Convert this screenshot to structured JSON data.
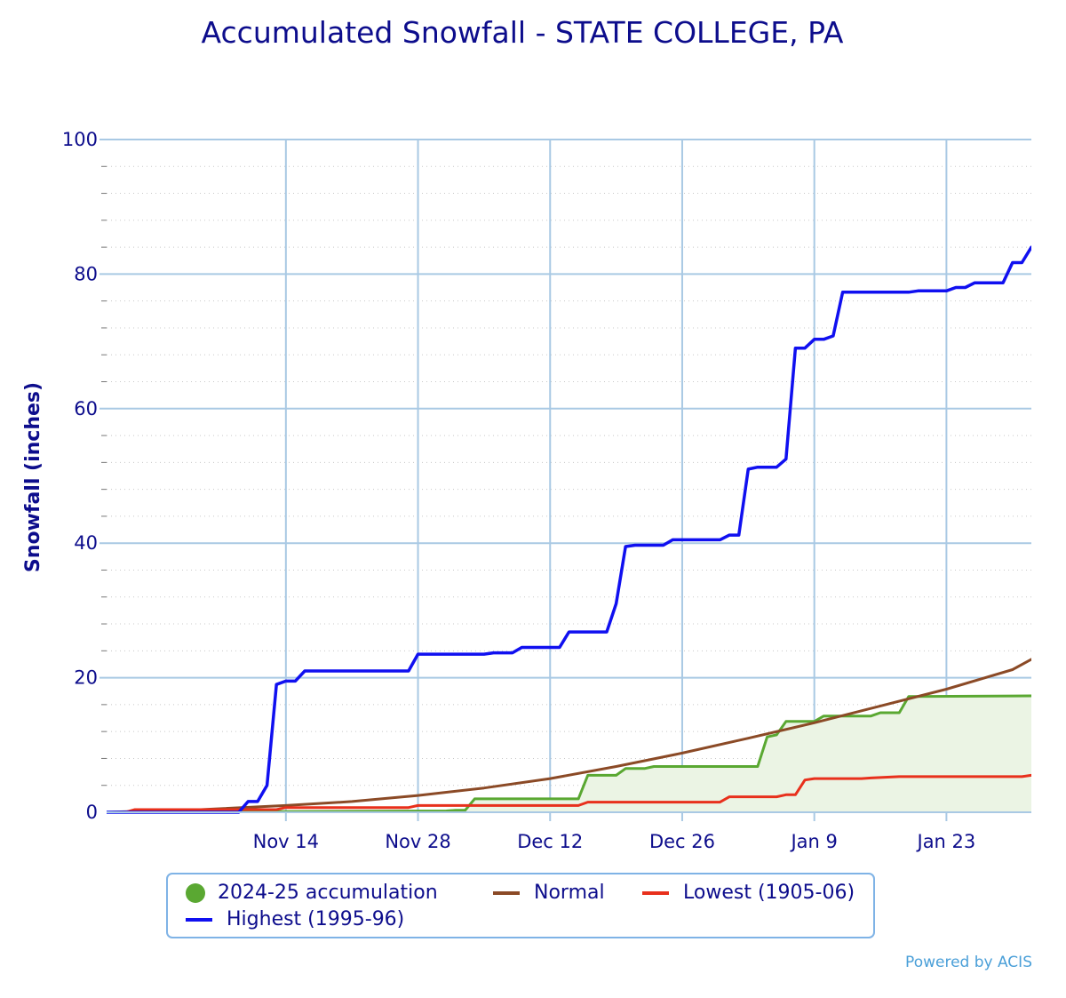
{
  "chart_data": {
    "type": "line",
    "title": "Accumulated Snowfall - STATE COLLEGE, PA",
    "ylabel": "Snowfall (inches)",
    "ylim": [
      0,
      100
    ],
    "yticks": [
      "0",
      "20",
      "40",
      "60",
      "80",
      "100"
    ],
    "xlim": [
      "2024-10-26",
      "2025-02-01"
    ],
    "xticks": [
      {
        "label": "Nov 14",
        "date": "2024-11-14"
      },
      {
        "label": "Nov 28",
        "date": "2024-11-28"
      },
      {
        "label": "Dec 12",
        "date": "2024-12-12"
      },
      {
        "label": "Dec 26",
        "date": "2024-12-26"
      },
      {
        "label": "Jan 9",
        "date": "2025-01-09"
      },
      {
        "label": "Jan 23",
        "date": "2025-01-23"
      }
    ],
    "grid": true,
    "legend_position": "bottom",
    "credit": "Powered by ACIS",
    "series": [
      {
        "name": "Highest (1995-96)",
        "color": "#1010f0",
        "marker": "line",
        "points": [
          [
            "2024-10-26",
            0
          ],
          [
            "2024-11-09",
            0
          ],
          [
            "2024-11-10",
            1.6
          ],
          [
            "2024-11-11",
            1.6
          ],
          [
            "2024-11-12",
            4
          ],
          [
            "2024-11-13",
            19
          ],
          [
            "2024-11-14",
            19.5
          ],
          [
            "2024-11-15",
            19.5
          ],
          [
            "2024-11-16",
            21
          ],
          [
            "2024-11-27",
            21
          ],
          [
            "2024-11-28",
            23.5
          ],
          [
            "2024-12-05",
            23.5
          ],
          [
            "2024-12-06",
            23.7
          ],
          [
            "2024-12-08",
            23.7
          ],
          [
            "2024-12-09",
            24.5
          ],
          [
            "2024-12-13",
            24.5
          ],
          [
            "2024-12-14",
            26.8
          ],
          [
            "2024-12-18",
            26.8
          ],
          [
            "2024-12-19",
            31
          ],
          [
            "2024-12-20",
            39.5
          ],
          [
            "2024-12-21",
            39.7
          ],
          [
            "2024-12-24",
            39.7
          ],
          [
            "2024-12-25",
            40.5
          ],
          [
            "2024-12-30",
            40.5
          ],
          [
            "2024-12-31",
            41.2
          ],
          [
            "2025-01-01",
            41.2
          ],
          [
            "2025-01-02",
            51
          ],
          [
            "2025-01-03",
            51.3
          ],
          [
            "2025-01-05",
            51.3
          ],
          [
            "2025-01-06",
            52.5
          ],
          [
            "2025-01-07",
            69
          ],
          [
            "2025-01-08",
            69
          ],
          [
            "2025-01-09",
            70.3
          ],
          [
            "2025-01-10",
            70.3
          ],
          [
            "2025-01-11",
            70.8
          ],
          [
            "2025-01-12",
            77.3
          ],
          [
            "2025-01-19",
            77.3
          ],
          [
            "2025-01-20",
            77.5
          ],
          [
            "2025-01-23",
            77.5
          ],
          [
            "2025-01-24",
            78
          ],
          [
            "2025-01-25",
            78
          ],
          [
            "2025-01-26",
            78.7
          ],
          [
            "2025-01-29",
            78.7
          ],
          [
            "2025-01-30",
            81.7
          ],
          [
            "2025-01-31",
            81.7
          ],
          [
            "2025-02-01",
            84
          ],
          [
            "2025-02-02",
            84
          ]
        ]
      },
      {
        "name": "Normal",
        "color": "#8b4a26",
        "marker": "line",
        "points": [
          [
            "2024-10-26",
            0
          ],
          [
            "2024-11-05",
            0.4
          ],
          [
            "2024-11-14",
            1
          ],
          [
            "2024-11-21",
            1.6
          ],
          [
            "2024-11-28",
            2.5
          ],
          [
            "2024-12-05",
            3.6
          ],
          [
            "2024-12-12",
            5
          ],
          [
            "2024-12-19",
            6.8
          ],
          [
            "2024-12-26",
            8.8
          ],
          [
            "2025-01-02",
            11
          ],
          [
            "2025-01-09",
            13.3
          ],
          [
            "2025-01-16",
            15.8
          ],
          [
            "2025-01-23",
            18.3
          ],
          [
            "2025-01-30",
            21.2
          ],
          [
            "2025-02-02",
            23.5
          ]
        ]
      },
      {
        "name": "Lowest (1905-06)",
        "color": "#e8301c",
        "marker": "line",
        "points": [
          [
            "2024-10-26",
            0
          ],
          [
            "2024-10-28",
            0
          ],
          [
            "2024-10-29",
            0.4
          ],
          [
            "2024-11-13",
            0.4
          ],
          [
            "2024-11-14",
            0.7
          ],
          [
            "2024-11-27",
            0.7
          ],
          [
            "2024-11-28",
            1
          ],
          [
            "2024-12-15",
            1
          ],
          [
            "2024-12-16",
            1.5
          ],
          [
            "2024-12-30",
            1.5
          ],
          [
            "2024-12-31",
            2.3
          ],
          [
            "2025-01-05",
            2.3
          ],
          [
            "2025-01-06",
            2.6
          ],
          [
            "2025-01-07",
            2.6
          ],
          [
            "2025-01-08",
            4.8
          ],
          [
            "2025-01-09",
            5
          ],
          [
            "2025-01-14",
            5
          ],
          [
            "2025-01-15",
            5.1
          ],
          [
            "2025-01-18",
            5.3
          ],
          [
            "2025-01-31",
            5.3
          ],
          [
            "2025-02-01",
            5.5
          ],
          [
            "2025-02-02",
            5.5
          ]
        ]
      },
      {
        "name": "2024-25 accumulation",
        "color": "#5aa832",
        "fill": "#ebf4e4",
        "marker": "dot",
        "points": [
          [
            "2024-10-26",
            0
          ],
          [
            "2024-12-01",
            0.2
          ],
          [
            "2024-12-02",
            0.3
          ],
          [
            "2024-12-03",
            0.3
          ],
          [
            "2024-12-04",
            2
          ],
          [
            "2024-12-15",
            2
          ],
          [
            "2024-12-16",
            5.5
          ],
          [
            "2024-12-19",
            5.5
          ],
          [
            "2024-12-20",
            6.5
          ],
          [
            "2024-12-22",
            6.5
          ],
          [
            "2024-12-23",
            6.8
          ],
          [
            "2025-01-03",
            6.8
          ],
          [
            "2025-01-04",
            11.2
          ],
          [
            "2025-01-05",
            11.5
          ],
          [
            "2025-01-06",
            13.5
          ],
          [
            "2025-01-09",
            13.5
          ],
          [
            "2025-01-10",
            14.3
          ],
          [
            "2025-01-15",
            14.3
          ],
          [
            "2025-01-16",
            14.8
          ],
          [
            "2025-01-18",
            14.8
          ],
          [
            "2025-01-19",
            17.2
          ],
          [
            "2025-02-02",
            17.3
          ]
        ]
      }
    ]
  }
}
